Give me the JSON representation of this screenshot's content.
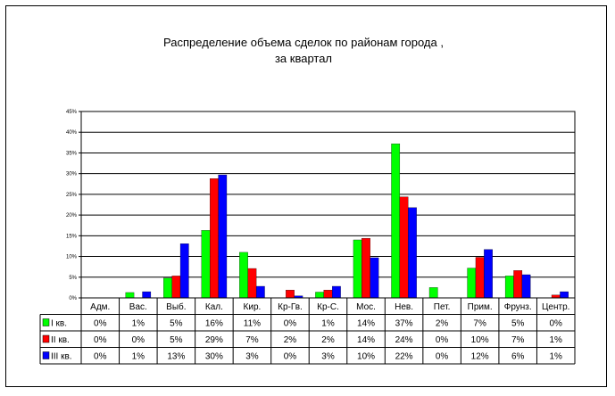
{
  "chart_data": {
    "type": "bar",
    "title": [
      "Распределение объема сделок по районам города ,",
      "за квартал"
    ],
    "categories": [
      "Адм.",
      "Вас.",
      "Выб.",
      "Кал.",
      "Кир.",
      "Кр-Гв.",
      "Кр-С.",
      "Мос.",
      "Нев.",
      "Пет.",
      "Прим.",
      "Фрунз.",
      "Центр."
    ],
    "yticks": [
      "0%",
      "5%",
      "10%",
      "15%",
      "20%",
      "25%",
      "30%",
      "35%",
      "40%",
      "45%"
    ],
    "ylim": [
      0,
      45
    ],
    "grid": true,
    "legend_placement": "data-table-left",
    "series": [
      {
        "name": "I кв.",
        "color": "#00ff00",
        "values": [
          0,
          1.3,
          4.8,
          16.3,
          11,
          0,
          1.4,
          14,
          37.2,
          2.5,
          7.2,
          5.3,
          0
        ],
        "labels": [
          "0%",
          "1%",
          "5%",
          "16%",
          "11%",
          "0%",
          "1%",
          "14%",
          "37%",
          "2%",
          "7%",
          "5%",
          "0%"
        ]
      },
      {
        "name": "II кв.",
        "color": "#ff0000",
        "values": [
          0,
          0,
          5.3,
          28.8,
          7.1,
          1.9,
          1.9,
          14.4,
          24.4,
          0,
          9.8,
          6.6,
          0.7
        ],
        "labels": [
          "0%",
          "0%",
          "5%",
          "29%",
          "7%",
          "2%",
          "2%",
          "14%",
          "24%",
          "0%",
          "10%",
          "7%",
          "1%"
        ]
      },
      {
        "name": "III кв.",
        "color": "#0000ff",
        "values": [
          0,
          1.5,
          13.1,
          29.7,
          2.8,
          0.5,
          2.8,
          9.7,
          21.8,
          0,
          11.7,
          5.6,
          1.5
        ],
        "labels": [
          "0%",
          "1%",
          "13%",
          "30%",
          "3%",
          "0%",
          "3%",
          "10%",
          "22%",
          "0%",
          "12%",
          "6%",
          "1%"
        ]
      }
    ]
  }
}
